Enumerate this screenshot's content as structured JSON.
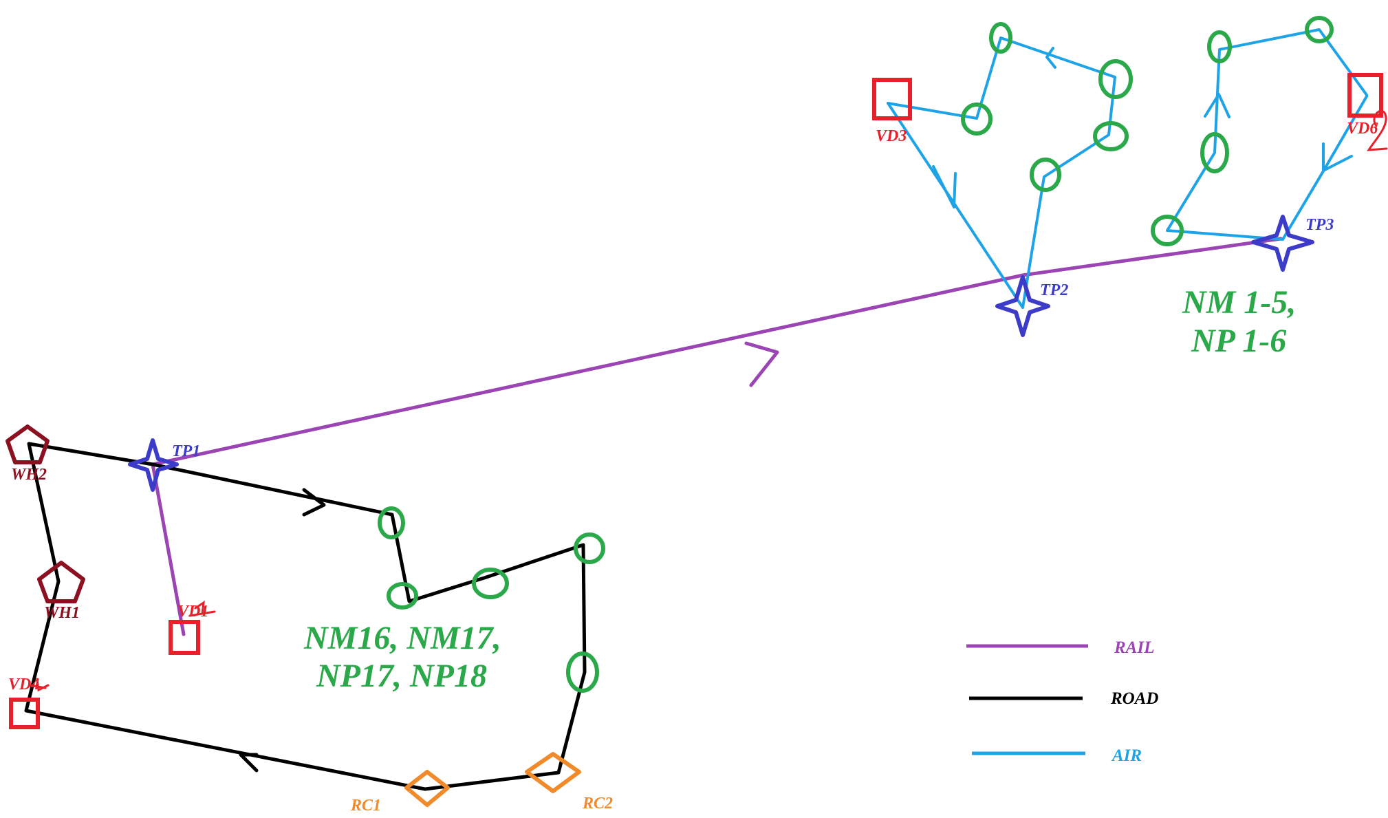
{
  "colors": {
    "rail": "#9b44b4",
    "road": "#000000",
    "air": "#1ea3e6",
    "circle": "#2aa84a",
    "vd": "#e8202a",
    "tp": "#3c3cc8",
    "wh": "#8b1020",
    "rc": "#f08a2a",
    "region_text": "#2aa84a"
  },
  "labels": {
    "wh1": "WH1",
    "wh2": "WH2",
    "tp1": "TP1",
    "tp2": "TP2",
    "tp3": "TP3",
    "vd1": "VD1",
    "vd3": "VD3",
    "vd4": "VD4",
    "vd6": "VD6",
    "rc1": "RC1",
    "rc2": "RC2"
  },
  "regions": {
    "south_line1": "NM16, NM17,",
    "south_line2": "NP17, NP18",
    "north_line1": "NM 1-5,",
    "north_line2": "NP 1-6"
  },
  "legend": [
    {
      "label": "RAIL",
      "color": "#9b44b4"
    },
    {
      "label": "ROAD",
      "color": "#000000"
    },
    {
      "label": "AIR",
      "color": "#1ea3e6"
    }
  ],
  "icons": {
    "warehouse": "pentagon-icon",
    "transfer_point": "four-point-star-icon",
    "vendor_depot": "square-icon",
    "relief_center": "diamond-icon",
    "node": "circle-icon"
  }
}
